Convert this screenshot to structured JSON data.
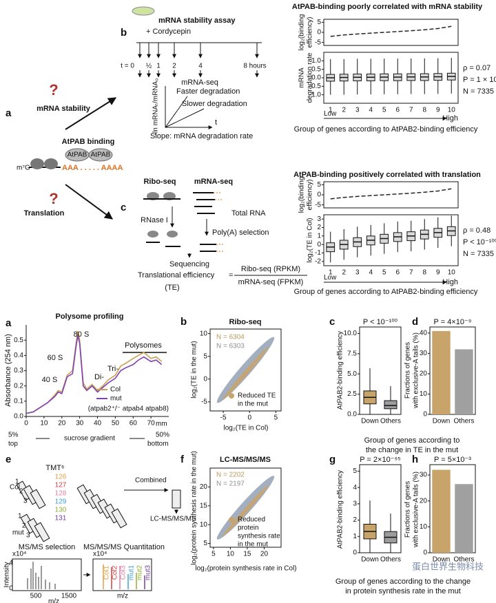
{
  "panel_labels": [
    "a",
    "b",
    "c",
    "a",
    "b",
    "c",
    "d",
    "e",
    "f",
    "g",
    "h"
  ],
  "schematic": {
    "question": "?",
    "mrna_stability": "mRNA stability",
    "translation": "Translation",
    "atpab_binding": "AtPAB binding",
    "atpab": "AtPAB",
    "cap": "m⁷G",
    "polya": "AAA . . . . . AAAA",
    "assay_title": "mRNA stability assay",
    "cordycepin": "+ Cordycepin",
    "timepoints": [
      "t = 0",
      "½",
      "1",
      "2",
      "4",
      "8 hours"
    ],
    "mrna_seq": "mRNA-seq",
    "y_axis": "-ln mRNAₜ/mRNA₀",
    "faster": "Faster degradation",
    "slower": "Slower degradation",
    "t": "t",
    "slope": "Slope: mRNA degradation rate",
    "ribo_seq": "Ribo-seq",
    "mrna_seq2": "mRNA-seq",
    "rnase": "RNase I",
    "total_rna": "Total RNA",
    "polya_sel": "Poly(A) selection",
    "sequencing": "Sequencing",
    "te_label": "Translational efficiency",
    "equals": "=",
    "te_abbr": "(TE)",
    "numerator": "Ribo-seq (RPKM)",
    "denominator": "mRNA-seq (FPKM)"
  },
  "proteomics": {
    "tmt": "TMT⁶",
    "tags": [
      "126",
      "127",
      "128",
      "129",
      "130",
      "131"
    ],
    "col": "Col",
    "mut": "mut",
    "reps": [
      "1",
      "2",
      "3"
    ],
    "combined": "Combined",
    "lc": "LC-MS/MS/MS",
    "ms_sel": "MS/MS selection",
    "ms_quant": "MS/MS/MS Quantitation",
    "x104": "x10⁴",
    "intensity": "Intensity",
    "spec_yticks": [
      "4",
      "0"
    ],
    "mz_ticks": [
      "500",
      "1500"
    ],
    "mz": "m/z",
    "channels": [
      "Col1",
      "Col2",
      "Col3",
      "mut1",
      "mut2",
      "mut3"
    ]
  },
  "captions": [
    [
      "Group of genes according to",
      "the change in TE in the mut"
    ],
    [
      "Group of genes according to the change",
      "in protein synthesis rate in the mut"
    ]
  ],
  "watermark": "蛋白世界生物科技",
  "chart_data": [
    {
      "type": "line",
      "title": "AtPAB-binding poorly correlated with mRNA stability",
      "ylabel_lines": [
        "log₂(binding",
        "efficiency)"
      ],
      "values": [
        -2.0,
        -1.3,
        -0.8,
        -0.4,
        0.0,
        0.4,
        0.8,
        1.3,
        1.9,
        3.0
      ],
      "ylim": [
        -6.5,
        6.5
      ],
      "yticks": [
        -5,
        0,
        5
      ],
      "color": "#222222"
    },
    {
      "type": "box",
      "ylabel_lines": [
        "mRNA",
        "degradation rate"
      ],
      "categories": [
        "1",
        "2",
        "3",
        "4",
        "5",
        "6",
        "7",
        "8",
        "9",
        "10"
      ],
      "boxes": [
        {
          "q1": -0.2,
          "median": 0.0,
          "q3": 0.2,
          "whislo": -1.0,
          "whishi": 1.1
        },
        {
          "q1": -0.19,
          "median": 0.02,
          "q3": 0.21,
          "whislo": -1.0,
          "whishi": 1.1
        },
        {
          "q1": -0.18,
          "median": 0.03,
          "q3": 0.22,
          "whislo": -0.98,
          "whishi": 1.12
        },
        {
          "q1": -0.18,
          "median": 0.03,
          "q3": 0.22,
          "whislo": -0.98,
          "whishi": 1.12
        },
        {
          "q1": -0.17,
          "median": 0.04,
          "q3": 0.23,
          "whislo": -0.97,
          "whishi": 1.13
        },
        {
          "q1": -0.17,
          "median": 0.04,
          "q3": 0.23,
          "whislo": -0.97,
          "whishi": 1.13
        },
        {
          "q1": -0.16,
          "median": 0.05,
          "q3": 0.24,
          "whislo": -0.96,
          "whishi": 1.14
        },
        {
          "q1": -0.16,
          "median": 0.05,
          "q3": 0.24,
          "whislo": -0.96,
          "whishi": 1.14
        },
        {
          "q1": -0.15,
          "median": 0.06,
          "q3": 0.25,
          "whislo": -0.95,
          "whishi": 1.15
        },
        {
          "q1": -0.13,
          "median": 0.08,
          "q3": 0.27,
          "whislo": -0.93,
          "whishi": 1.17
        }
      ],
      "colors": [
        "#d9d9d9"
      ],
      "ylim": [
        -1.5,
        1.5
      ],
      "yticks": [
        {
          "value": -1,
          "label": "-1.0"
        },
        -0.5,
        {
          "value": 0,
          "label": "0.0"
        },
        0.5,
        {
          "value": 1,
          "label": "1.0"
        }
      ],
      "stats": [
        "ρ = 0.07",
        "P = 1 × 10⁻⁸",
        "N = 7335"
      ],
      "low": "Low",
      "high": "High",
      "xlabel": "Group of genes according to AtPAB2-binding efficiency"
    },
    {
      "type": "line",
      "title": "AtPAB-binding positively correlated with translation",
      "ylabel_lines": [
        "log₂(binding",
        "efficiency)"
      ],
      "values": [
        -2.0,
        -1.3,
        -0.8,
        -0.4,
        0.0,
        0.4,
        0.8,
        1.3,
        1.9,
        3.0
      ],
      "ylim": [
        -6.5,
        6.5
      ],
      "yticks": [
        -5,
        0,
        5
      ],
      "color": "#222222"
    },
    {
      "type": "box",
      "ylabel_lines": [
        "log₂(TE in Col)"
      ],
      "categories": [
        "1",
        "2",
        "3",
        "4",
        "5",
        "6",
        "7",
        "8",
        "9",
        "10"
      ],
      "boxes": [
        {
          "q1": -0.85,
          "median": -0.3,
          "q3": 0.2,
          "whislo": -2.1,
          "whishi": 1.5
        },
        {
          "q1": -0.55,
          "median": 0.0,
          "q3": 0.5,
          "whislo": -1.8,
          "whishi": 1.8
        },
        {
          "q1": -0.25,
          "median": 0.3,
          "q3": 0.8,
          "whislo": -1.5,
          "whishi": 2.1
        },
        {
          "q1": -0.05,
          "median": 0.5,
          "q3": 1.0,
          "whislo": -1.3,
          "whishi": 2.3
        },
        {
          "q1": 0.15,
          "median": 0.7,
          "q3": 1.2,
          "whislo": -1.1,
          "whishi": 2.5
        },
        {
          "q1": 0.35,
          "median": 0.9,
          "q3": 1.4,
          "whislo": -0.9,
          "whishi": 2.7
        },
        {
          "q1": 0.45,
          "median": 1.0,
          "q3": 1.5,
          "whislo": -0.8,
          "whishi": 2.8
        },
        {
          "q1": 0.65,
          "median": 1.2,
          "q3": 1.7,
          "whislo": -0.6,
          "whishi": 3.0
        },
        {
          "q1": 0.85,
          "median": 1.4,
          "q3": 1.9,
          "whislo": -0.4,
          "whishi": 3.2
        },
        {
          "q1": 1.05,
          "median": 1.6,
          "q3": 2.1,
          "whislo": -0.2,
          "whishi": 3.4
        }
      ],
      "colors": [
        "#d9d9d9"
      ],
      "ylim": [
        -2.5,
        3.5
      ],
      "yticks": [
        -2,
        -1,
        0,
        1,
        2,
        3
      ],
      "stats": [
        "ρ = 0.48",
        "P < 10⁻¹⁰⁰",
        "N = 7335"
      ],
      "low": "Low",
      "high": "High",
      "xlabel": "Group of genes according to AtPAB2-binding efficiency"
    },
    {
      "type": "line",
      "title": "Polysome profiling",
      "ylabel": "Absorbance (254 nm)",
      "xlabel": "mm",
      "x": [
        0,
        4,
        8,
        12,
        16,
        18,
        20,
        23,
        26,
        28,
        29,
        30,
        32,
        34,
        37,
        40,
        43,
        46,
        50,
        53,
        56,
        60,
        63,
        66,
        70,
        73,
        76
      ],
      "series": [
        {
          "name": "Col",
          "color": "#c8a050",
          "values": [
            0.02,
            0.03,
            0.06,
            0.09,
            0.14,
            0.17,
            0.16,
            0.27,
            0.3,
            0.48,
            0.56,
            0.5,
            0.22,
            0.18,
            0.21,
            0.17,
            0.2,
            0.24,
            0.27,
            0.33,
            0.35,
            0.38,
            0.4,
            0.42,
            0.38,
            0.39,
            0.36
          ]
        },
        {
          "name": "mut",
          "color": "#8040b0",
          "values": [
            0.02,
            0.03,
            0.06,
            0.09,
            0.13,
            0.16,
            0.15,
            0.26,
            0.28,
            0.46,
            0.53,
            0.48,
            0.2,
            0.17,
            0.2,
            0.16,
            0.19,
            0.22,
            0.25,
            0.3,
            0.32,
            0.34,
            0.37,
            0.39,
            0.36,
            0.37,
            0.34
          ]
        }
      ],
      "xlim": [
        0,
        80
      ],
      "xticks": [
        0,
        10,
        20,
        30,
        40,
        50,
        60,
        70
      ],
      "ylim": [
        0,
        0.6
      ],
      "yticks": [
        {
          "value": 0,
          "label": "0.0"
        },
        0.1,
        0.2,
        0.3,
        0.4,
        0.5
      ],
      "annotations": [
        "40 S",
        "60 S",
        "80 S",
        "Di-",
        "Tri-",
        "Polysomes"
      ],
      "note": "(atpab2⁺/⁻ atpab4 atpab8)",
      "gradient": [
        "5%",
        "top",
        "sucrose gradient",
        "50%",
        "bottom"
      ]
    },
    {
      "type": "scatter",
      "title": "Ribo-seq",
      "ylabel": "log₂(TE in the mut)",
      "xlabel": "log₂(TE in Col)",
      "xlim": [
        -7.5,
        6
      ],
      "xticks": [
        -5,
        0,
        5
      ],
      "ylim": [
        -7,
        11
      ],
      "yticks": [
        -5,
        0,
        5,
        10
      ],
      "counts": [
        "N = 6304",
        "N = 6303"
      ],
      "count_colors": [
        "#b89a5a",
        "#909090"
      ],
      "legend_lines": [
        "Reduced TE",
        "in the mut"
      ],
      "cloud_colors": [
        "#8c9aae",
        "#c9a46a"
      ]
    },
    {
      "type": "box",
      "title": "P < 10⁻¹⁰⁰",
      "ylabel": "AtPAB2-binding efficiency",
      "categories": [
        "Down",
        "Others"
      ],
      "boxes": [
        {
          "q1": 1.3,
          "median": 2.1,
          "q3": 2.9,
          "whislo": 0,
          "whishi": 5.7
        },
        {
          "q1": 0.7,
          "median": 1.1,
          "q3": 1.7,
          "whislo": 0,
          "whishi": 3.5
        }
      ],
      "colors": [
        "#c9a46a",
        "#9c9c9c"
      ],
      "ylim": [
        0,
        10.8
      ],
      "yticks": [
        {
          "value": 0,
          "label": "0.0"
        },
        2.5,
        {
          "value": 5,
          "label": "5.0"
        },
        7.5,
        {
          "value": 10,
          "label": "10.0"
        }
      ]
    },
    {
      "type": "bar",
      "title": "P = 4×10⁻⁹",
      "ylabel_lines": [
        "Fractions of genes",
        "with exclusive-A tails (%)"
      ],
      "categories": [
        "Down",
        "Others"
      ],
      "values": [
        41,
        32
      ],
      "colors": [
        "#c9a46a",
        "#a0a0a0"
      ],
      "ylim": [
        0,
        43
      ],
      "yticks": [
        0,
        10,
        20,
        30,
        40
      ]
    },
    {
      "type": "scatter",
      "title": "LC-MS/MS/MS",
      "ylabel": "log₂(protein synthesis rate in the mut)",
      "xlabel": "log₂(protein synthesis rate in Col)",
      "xlim": [
        4,
        25
      ],
      "xticks": [
        5,
        10,
        15,
        20
      ],
      "ylim": [
        4,
        25
      ],
      "yticks": [
        5,
        10,
        15,
        20
      ],
      "counts": [
        "N = 2202",
        "N = 2197"
      ],
      "count_colors": [
        "#b89a5a",
        "#909090"
      ],
      "legend_lines": [
        "Reduced",
        "protein",
        "synthesis rate",
        "in the mut"
      ],
      "cloud_colors": [
        "#8c9aae",
        "#c9a46a"
      ]
    },
    {
      "type": "box",
      "title": "P = 2×10⁻⁹⁵",
      "ylabel": "AtPAB2-binding efficiency",
      "categories": [
        "Down",
        "Others"
      ],
      "boxes": [
        {
          "q1": 0.85,
          "median": 1.3,
          "q3": 1.75,
          "whislo": 0,
          "whishi": 3.2
        },
        {
          "q1": 0.6,
          "median": 0.95,
          "q3": 1.3,
          "whislo": 0,
          "whishi": 2.4
        }
      ],
      "colors": [
        "#c9a46a",
        "#9c9c9c"
      ],
      "ylim": [
        0,
        5.4
      ],
      "yticks": [
        0,
        1,
        2,
        3,
        4,
        5
      ]
    },
    {
      "type": "bar",
      "title": "P = 5×10⁻³",
      "ylabel_lines": [
        "Fractions of genes",
        "with exclusive-A tails (%)"
      ],
      "categories": [
        "Down",
        "Others"
      ],
      "values": [
        32,
        26.5
      ],
      "colors": [
        "#c9a46a",
        "#a0a0a0"
      ],
      "ylim": [
        0,
        34
      ],
      "yticks": [
        0,
        10,
        20,
        30
      ]
    }
  ]
}
